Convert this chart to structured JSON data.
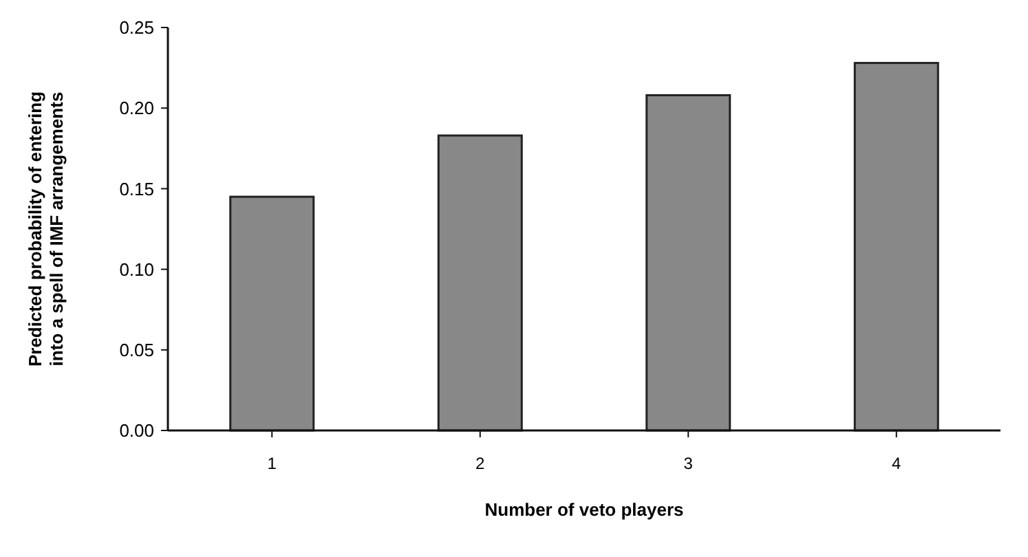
{
  "chart_data": {
    "type": "bar",
    "xlabel": "Number of veto players",
    "ylabel": "Predicted probability of entering into a spell of IMF arrangements",
    "categories": [
      "1",
      "2",
      "3",
      "4"
    ],
    "values": [
      0.145,
      0.183,
      0.208,
      0.228
    ],
    "color": "#888888",
    "ylim": [
      0,
      0.25
    ],
    "yticks": [
      {
        "value": 0,
        "label": "0.00"
      },
      {
        "value": 0.05,
        "label": "0.05"
      },
      {
        "value": 0.1,
        "label": "0.10"
      },
      {
        "value": 0.15,
        "label": "0.15"
      },
      {
        "value": 0.2,
        "label": "0.20"
      },
      {
        "value": 0.25,
        "label": "0.25"
      }
    ]
  }
}
